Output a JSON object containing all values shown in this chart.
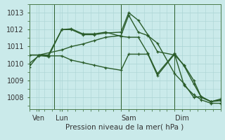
{
  "background_color": "#caeaea",
  "grid_color": "#aad4d4",
  "line_color": "#2a5c2a",
  "title": "Pression niveau de la mer( hPa )",
  "title_fontsize": 7.5,
  "tick_fontsize": 7,
  "ylim": [
    1007.3,
    1013.5
  ],
  "xlim": [
    0,
    100
  ],
  "xtick_positions": [
    5,
    17,
    52,
    80
  ],
  "xtick_labels": [
    "Ven",
    "Lun",
    "Sam",
    "Dim"
  ],
  "ytick_positions": [
    1008,
    1009,
    1010,
    1011,
    1012,
    1013
  ],
  "vline_positions": [
    13,
    48,
    76
  ],
  "line1_x": [
    0,
    5,
    10,
    17,
    22,
    28,
    34,
    40,
    48,
    52,
    57,
    62,
    67,
    76,
    81,
    86,
    90,
    95,
    100
  ],
  "line1_y": [
    1010.5,
    1010.5,
    1010.5,
    1012.0,
    1012.0,
    1011.7,
    1011.7,
    1011.8,
    1011.85,
    1013.0,
    1012.55,
    1011.7,
    1010.7,
    1010.5,
    1009.9,
    1009.0,
    1008.0,
    1007.75,
    1007.8
  ],
  "line2_x": [
    0,
    5,
    10,
    17,
    22,
    28,
    34,
    40,
    48,
    52,
    57,
    62,
    67,
    76,
    81,
    86,
    90,
    95,
    100
  ],
  "line2_y": [
    1010.5,
    1010.5,
    1010.4,
    1012.0,
    1012.05,
    1011.75,
    1011.75,
    1011.85,
    1011.6,
    1011.55,
    1011.55,
    1010.6,
    1009.4,
    1010.6,
    1009.85,
    1008.8,
    1008.0,
    1007.75,
    1007.9
  ],
  "line3_x": [
    0,
    5,
    17,
    22,
    28,
    34,
    40,
    48,
    52,
    57,
    62,
    67,
    76,
    81,
    86,
    90,
    95,
    100
  ],
  "line3_y": [
    1009.8,
    1010.5,
    1010.8,
    1011.0,
    1011.15,
    1011.35,
    1011.55,
    1011.65,
    1012.85,
    1011.85,
    1011.65,
    1011.2,
    1009.4,
    1008.8,
    1008.0,
    1008.05,
    1007.75,
    1007.85
  ],
  "line4_x": [
    0,
    5,
    10,
    17,
    22,
    28,
    34,
    40,
    48,
    52,
    57,
    62,
    67,
    76,
    81,
    86,
    90,
    95,
    100
  ],
  "line4_y": [
    1010.0,
    1010.45,
    1010.45,
    1010.45,
    1010.2,
    1010.05,
    1009.9,
    1009.75,
    1009.6,
    1010.55,
    1010.55,
    1010.55,
    1009.3,
    1010.55,
    1008.7,
    1008.15,
    1007.85,
    1007.65,
    1007.65
  ],
  "linewidth": 1.0,
  "markersize": 3,
  "lw_vline": 0.7
}
